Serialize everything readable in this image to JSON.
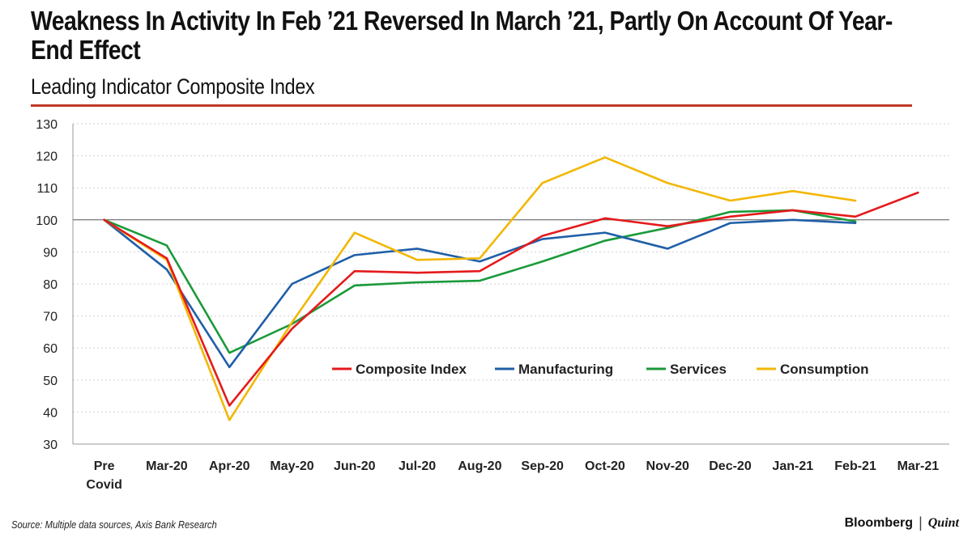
{
  "header": {
    "title": "Weakness In Activity In Feb ’21 Reversed In March ’21, Partly On Account Of Year-End Effect",
    "subtitle": "Leading Indicator Composite Index"
  },
  "footer": {
    "source": "Source: Multiple data sources, Axis Bank Research",
    "brand_primary": "Bloomberg",
    "brand_separator": "|",
    "brand_secondary": "Quint"
  },
  "colors": {
    "accent_rule": "#c0392b",
    "composite": "#e41a1c",
    "manufacturing": "#1f5fa8",
    "services": "#1a9a3a",
    "consumption": "#f2b705"
  },
  "chart_data": {
    "type": "line",
    "title": "Leading Indicator Composite Index",
    "xlabel": "",
    "ylabel": "",
    "ylim": [
      30,
      130
    ],
    "yticks": [
      30,
      40,
      50,
      60,
      70,
      80,
      90,
      100,
      110,
      120,
      130
    ],
    "grid": "horizontal dotted",
    "reference_line": 100,
    "legend_position": "center",
    "categories": [
      "Pre Covid",
      "Mar-20",
      "Apr-20",
      "May-20",
      "Jun-20",
      "Jul-20",
      "Aug-20",
      "Sep-20",
      "Oct-20",
      "Nov-20",
      "Dec-20",
      "Jan-21",
      "Feb-21",
      "Mar-21"
    ],
    "series": [
      {
        "name": "Composite Index",
        "color": "#e41a1c",
        "values": [
          100,
          88,
          42,
          66,
          84,
          83.5,
          84,
          95,
          100.5,
          98,
          101,
          103,
          101,
          108.5
        ]
      },
      {
        "name": "Manufacturing",
        "color": "#1f5fa8",
        "values": [
          100,
          84.5,
          54,
          80,
          89,
          91,
          87,
          94,
          96,
          91,
          99,
          100,
          99,
          null
        ]
      },
      {
        "name": "Services",
        "color": "#1a9a3a",
        "values": [
          100,
          92,
          58.5,
          67.5,
          79.5,
          80.5,
          81,
          87,
          93.5,
          97.5,
          102.5,
          103,
          99.5,
          null
        ]
      },
      {
        "name": "Consumption",
        "color": "#f2b705",
        "values": [
          100,
          87.5,
          37.5,
          68,
          96,
          87.5,
          88,
          111.5,
          119.5,
          111.5,
          106,
          109,
          106,
          null
        ]
      }
    ]
  }
}
